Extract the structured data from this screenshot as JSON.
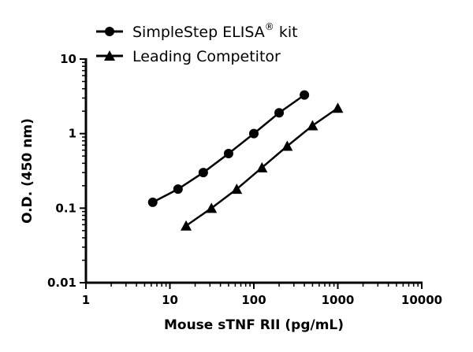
{
  "chart_data": {
    "type": "line",
    "title": "",
    "xlabel": "Mouse sTNF  RII (pg/mL)",
    "ylabel": "O.D. (450 nm)",
    "xscale": "log",
    "yscale": "log",
    "xlim": [
      1,
      10000
    ],
    "ylim": [
      0.01,
      10
    ],
    "xticks": [
      "1",
      "10",
      "100",
      "1000",
      "10000"
    ],
    "yticks": [
      "0.01",
      "0.1",
      "1",
      "10"
    ],
    "grid": false,
    "legend_position": "top-left",
    "series": [
      {
        "name": "SimpleStep ELISA",
        "name_sup": "®",
        "name_suffix": " kit",
        "marker": "circle",
        "color": "#000000",
        "x": [
          6.25,
          12.5,
          25,
          50,
          100,
          200,
          400
        ],
        "y": [
          0.12,
          0.18,
          0.3,
          0.54,
          1.0,
          1.9,
          3.3
        ]
      },
      {
        "name": "Leading Competitor",
        "marker": "triangle",
        "color": "#000000",
        "x": [
          15.6,
          31.25,
          62.5,
          125,
          250,
          500,
          1000
        ],
        "y": [
          0.058,
          0.1,
          0.18,
          0.35,
          0.68,
          1.28,
          2.2
        ]
      }
    ]
  }
}
